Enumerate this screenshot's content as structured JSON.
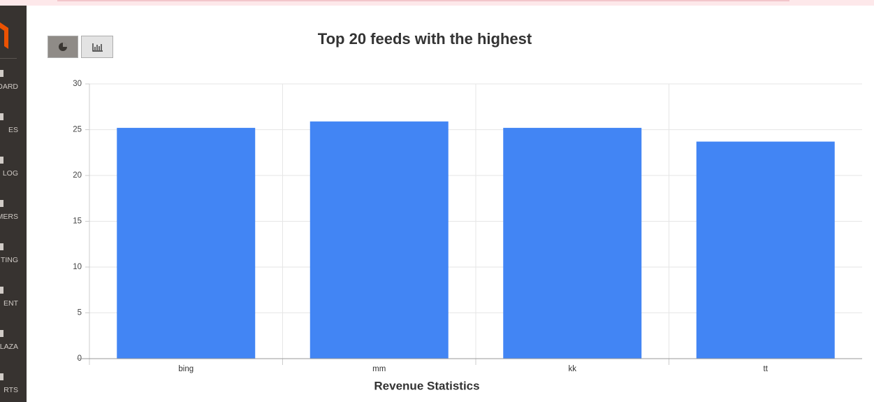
{
  "sidebar": {
    "items": [
      "OARD",
      "ES",
      "LOG",
      "MERS",
      "TING",
      "ENT",
      "LAZA",
      "RTS"
    ]
  },
  "chart_data": {
    "type": "bar",
    "title": "Top 20 feeds with the highest",
    "x_label": "Revenue Statistics",
    "categories": [
      "bing",
      "mm",
      "kk",
      "tt"
    ],
    "values": [
      25.2,
      25.9,
      25.2,
      23.7
    ],
    "color": "#4285f4",
    "ylim": [
      0,
      30
    ],
    "yticks": [
      0,
      5,
      10,
      15,
      20,
      25,
      30
    ],
    "grid": true
  }
}
